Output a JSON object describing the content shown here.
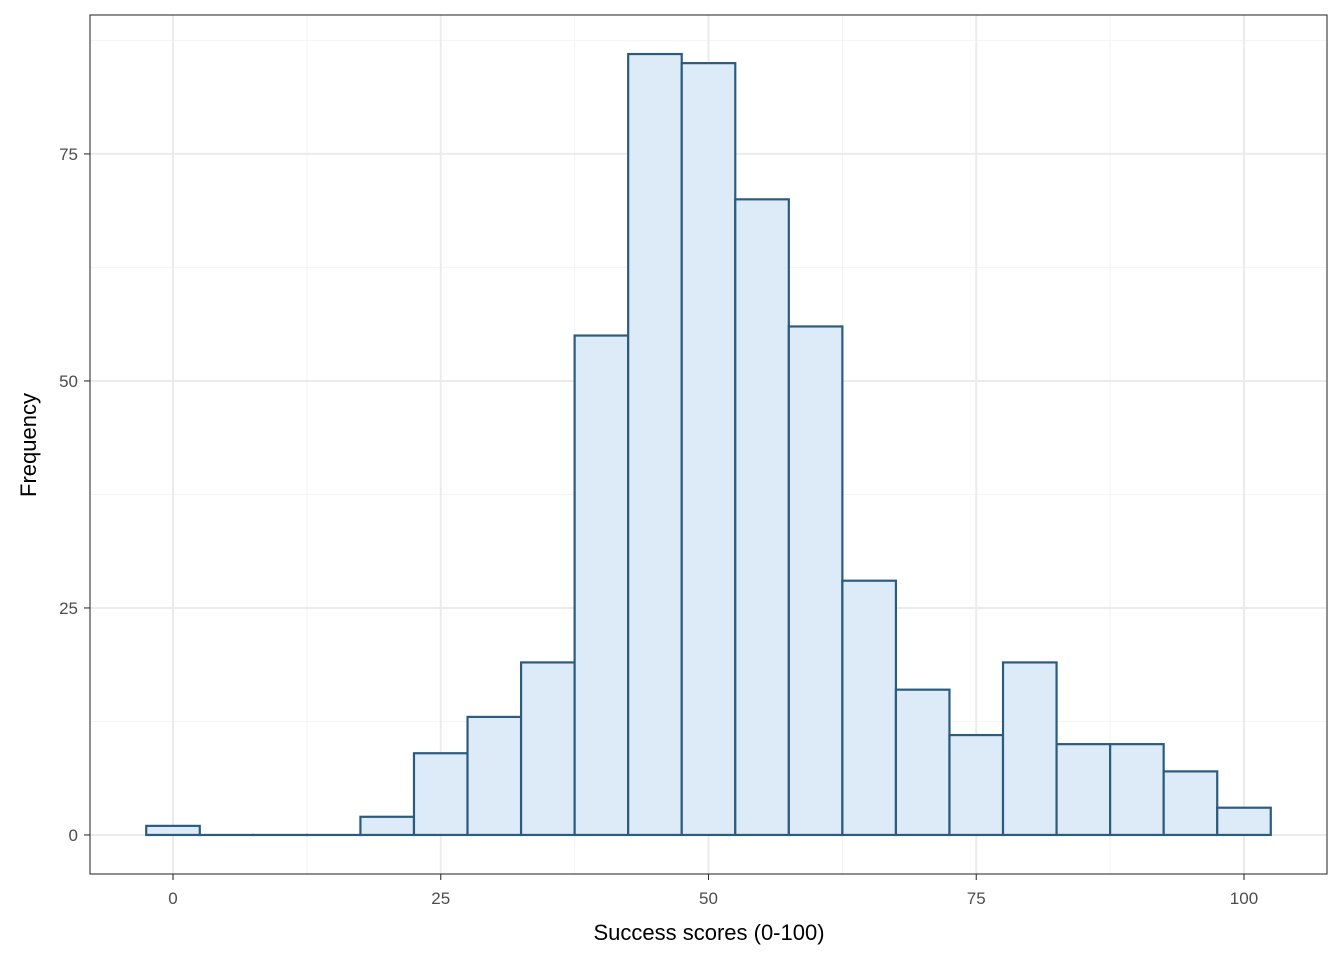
{
  "chart_data": {
    "type": "bar",
    "subtype": "histogram",
    "title": "",
    "xlabel": "Success scores (0-100)",
    "ylabel": "Frequency",
    "bin_width": 5,
    "bins": [
      {
        "center": 0,
        "count": 1
      },
      {
        "center": 5,
        "count": 0
      },
      {
        "center": 10,
        "count": 0
      },
      {
        "center": 15,
        "count": 0
      },
      {
        "center": 20,
        "count": 2
      },
      {
        "center": 25,
        "count": 9
      },
      {
        "center": 30,
        "count": 13
      },
      {
        "center": 35,
        "count": 19
      },
      {
        "center": 40,
        "count": 55
      },
      {
        "center": 45,
        "count": 86
      },
      {
        "center": 50,
        "count": 85
      },
      {
        "center": 55,
        "count": 70
      },
      {
        "center": 60,
        "count": 56
      },
      {
        "center": 65,
        "count": 28
      },
      {
        "center": 70,
        "count": 16
      },
      {
        "center": 75,
        "count": 11
      },
      {
        "center": 80,
        "count": 19
      },
      {
        "center": 85,
        "count": 10
      },
      {
        "center": 90,
        "count": 10
      },
      {
        "center": 95,
        "count": 7
      },
      {
        "center": 100,
        "count": 3
      }
    ],
    "xlim": [
      -7.75,
      107.75
    ],
    "ylim": [
      -4.3,
      90.3
    ],
    "x_ticks": [
      0,
      25,
      50,
      75,
      100
    ],
    "x_tick_labels": [
      "0",
      "25",
      "50",
      "75",
      "100"
    ],
    "y_ticks": [
      0,
      25,
      50,
      75
    ],
    "y_tick_labels": [
      "0",
      "25",
      "50",
      "75"
    ],
    "grid": true,
    "theme": "bw",
    "colors": {
      "bar_fill": "#dcebf7",
      "bar_stroke": "#2b5c7e",
      "grid_major": "#ebebeb",
      "grid_minor": "#f3f3f3",
      "panel_border": "#333333",
      "tick_text": "#4d4d4d",
      "axis_title": "#000000"
    }
  }
}
